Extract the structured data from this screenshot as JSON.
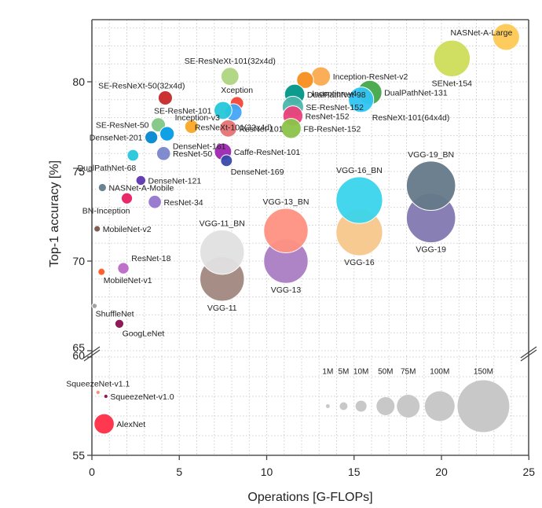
{
  "chart_data": {
    "type": "scatter",
    "title": "",
    "xlabel": "Operations [G-FLOPs]",
    "ylabel": "Top-1 accuracy [%]",
    "xlim": [
      0,
      25
    ],
    "ylim_upper_panel": [
      65,
      83.5
    ],
    "ylim_lower_panel": [
      55,
      60
    ],
    "axis_break": "between 60 and 65",
    "x_ticks": [
      "0",
      "5",
      "10",
      "15",
      "20",
      "25"
    ],
    "y_ticks_upper": [
      "65",
      "70",
      "75",
      "80"
    ],
    "y_ticks_lower": [
      "55",
      "60"
    ],
    "grid": true,
    "bubble_size": "number of parameters",
    "legend": {
      "placement": "bottom-right",
      "entries": [
        {
          "label": "1M",
          "params": 1,
          "x": 13.5
        },
        {
          "label": "5M",
          "params": 5,
          "x": 14.4
        },
        {
          "label": "10M",
          "params": 10,
          "x": 15.4
        },
        {
          "label": "50M",
          "params": 50,
          "x": 16.8
        },
        {
          "label": "75M",
          "params": 75,
          "x": 18.1
        },
        {
          "label": "100M",
          "params": 100,
          "x": 19.9
        },
        {
          "label": "150M",
          "params": 150,
          "x": 22.4
        }
      ],
      "y": 57.5,
      "color": "#c8c8c8"
    },
    "points": [
      {
        "name": "NASNet-A-Large",
        "x": 23.7,
        "y": 82.5,
        "params": 89,
        "color": "#fdc954",
        "label_pos": "left-top"
      },
      {
        "name": "SENet-154",
        "x": 20.6,
        "y": 81.3,
        "params": 115,
        "color": "#cddc59",
        "label_pos": "below"
      },
      {
        "name": "DualPathNet-131",
        "x": 15.9,
        "y": 79.4,
        "params": 80,
        "color": "#43a849",
        "label_pos": "right"
      },
      {
        "name": "ResNeXt-101(64x4d)",
        "x": 15.4,
        "y": 79.0,
        "params": 84,
        "color": "#32c5f4",
        "label_pos": "right-below"
      },
      {
        "name": "Inception-ResNet-v2",
        "x": 13.1,
        "y": 80.3,
        "params": 56,
        "color": "#fbaa4f",
        "label_pos": "right"
      },
      {
        "name": "Inception-v4",
        "x": 12.2,
        "y": 80.1,
        "params": 43,
        "color": "#f58d1e",
        "label_pos": "right-below"
      },
      {
        "name": "DualPathNet-98",
        "x": 11.6,
        "y": 79.3,
        "params": 61,
        "color": "#009688",
        "label_pos": "right"
      },
      {
        "name": "SE-ResNet-152",
        "x": 11.5,
        "y": 78.6,
        "params": 67,
        "color": "#4db6ac",
        "label_pos": "right"
      },
      {
        "name": "ResNet-152",
        "x": 11.5,
        "y": 78.1,
        "params": 60,
        "color": "#ec407a",
        "label_pos": "right"
      },
      {
        "name": "FB-ResNet-152",
        "x": 11.4,
        "y": 77.4,
        "params": 60,
        "color": "#8bc34a",
        "label_pos": "right"
      },
      {
        "name": "SE-ResNeXt-101(32x4d)",
        "x": 7.9,
        "y": 80.3,
        "params": 49,
        "color": "#aed581",
        "label_pos": "above"
      },
      {
        "name": "SE-ResNeXt-50(32x4d)",
        "x": 4.2,
        "y": 79.1,
        "params": 28,
        "color": "#c62828",
        "label_pos": "left-top"
      },
      {
        "name": "Xception",
        "x": 8.3,
        "y": 78.8,
        "params": 23,
        "color": "#f44336",
        "label_pos": "above"
      },
      {
        "name": "ResNeXt-101(32x4d)",
        "x": 8.1,
        "y": 78.3,
        "params": 44,
        "color": "#42a5f5",
        "label_pos": "below"
      },
      {
        "name": "SE-ResNet-101",
        "x": 7.5,
        "y": 78.4,
        "params": 49,
        "color": "#26c6da",
        "label_pos": "left"
      },
      {
        "name": "Inception-v3",
        "x": 5.7,
        "y": 77.5,
        "params": 24,
        "color": "#f9a825",
        "label_pos": "left-top"
      },
      {
        "name": "SE-ResNet-50",
        "x": 3.8,
        "y": 77.6,
        "params": 28,
        "color": "#81c784",
        "label_pos": "left"
      },
      {
        "name": "DenseNet-161",
        "x": 4.3,
        "y": 77.1,
        "params": 29,
        "color": "#039be5",
        "label_pos": "right-below"
      },
      {
        "name": "DenseNet-201",
        "x": 3.4,
        "y": 76.9,
        "params": 20,
        "color": "#0288d1",
        "label_pos": "left"
      },
      {
        "name": "ResNet-101",
        "x": 7.8,
        "y": 77.4,
        "params": 45,
        "color": "#e57373",
        "label_pos": "right"
      },
      {
        "name": "Caffe-ResNet-101",
        "x": 7.5,
        "y": 76.1,
        "params": 45,
        "color": "#9c27b0",
        "label_pos": "right"
      },
      {
        "name": "DenseNet-169",
        "x": 7.7,
        "y": 75.6,
        "params": 14,
        "color": "#3949ab",
        "label_pos": "right-below"
      },
      {
        "name": "DualPathNet-68",
        "x": 2.35,
        "y": 75.9,
        "params": 13,
        "color": "#26c6da",
        "label_pos": "left-below"
      },
      {
        "name": "ResNet-50",
        "x": 4.1,
        "y": 76.0,
        "params": 26,
        "color": "#7986cb",
        "label_pos": "right"
      },
      {
        "name": "DenseNet-121",
        "x": 2.8,
        "y": 74.5,
        "params": 8,
        "color": "#5e35b1",
        "label_pos": "right"
      },
      {
        "name": "NASNet-A-Mobile",
        "x": 0.6,
        "y": 74.1,
        "params": 5.3,
        "color": "#607d8b",
        "label_pos": "right"
      },
      {
        "name": "BN-Inception",
        "x": 2.0,
        "y": 73.5,
        "params": 11,
        "color": "#e91e63",
        "label_pos": "left-below"
      },
      {
        "name": "ResNet-34",
        "x": 3.6,
        "y": 73.3,
        "params": 22,
        "color": "#9575cd",
        "label_pos": "right"
      },
      {
        "name": "MobileNet-v2",
        "x": 0.3,
        "y": 71.8,
        "params": 3.5,
        "color": "#795548",
        "label_pos": "right"
      },
      {
        "name": "ResNet-18",
        "x": 1.8,
        "y": 69.6,
        "params": 12,
        "color": "#ba68c8",
        "label_pos": "right-top"
      },
      {
        "name": "MobileNet-v1",
        "x": 0.55,
        "y": 69.4,
        "params": 4.2,
        "color": "#ff5722",
        "label_pos": "right-below"
      },
      {
        "name": "ShuffleNet",
        "x": 0.15,
        "y": 67.5,
        "params": 2.3,
        "color": "#9e9e9e",
        "label_pos": "right-below"
      },
      {
        "name": "GoogLeNet",
        "x": 1.57,
        "y": 66.5,
        "params": 6.6,
        "color": "#880e4f",
        "label_pos": "right-below"
      },
      {
        "name": "VGG-11",
        "x": 7.45,
        "y": 69.0,
        "params": 133,
        "color": "#a1887f",
        "label_pos": "below"
      },
      {
        "name": "VGG-11_BN",
        "x": 7.45,
        "y": 70.5,
        "params": 133,
        "color": "#e0e0e0",
        "label_pos": "above"
      },
      {
        "name": "VGG-13",
        "x": 11.1,
        "y": 70.0,
        "params": 133,
        "color": "#ab7dc4",
        "label_pos": "below"
      },
      {
        "name": "VGG-13_BN",
        "x": 11.1,
        "y": 71.7,
        "params": 133,
        "color": "#ff9182",
        "label_pos": "above"
      },
      {
        "name": "VGG-16",
        "x": 15.3,
        "y": 71.6,
        "params": 138,
        "color": "#f5c78a",
        "label_pos": "below"
      },
      {
        "name": "VGG-16_BN",
        "x": 15.3,
        "y": 73.4,
        "params": 138,
        "color": "#3ad4eb",
        "label_pos": "above"
      },
      {
        "name": "VGG-19",
        "x": 19.4,
        "y": 72.4,
        "params": 144,
        "color": "#8279b1",
        "label_pos": "below"
      },
      {
        "name": "VGG-19_BN",
        "x": 19.4,
        "y": 74.2,
        "params": 144,
        "color": "#65798a",
        "label_pos": "above"
      },
      {
        "name": "SqueezeNet-v1.1",
        "x": 0.35,
        "y": 58.2,
        "params": 1.2,
        "color": "#ff8a65",
        "label_pos": "above"
      },
      {
        "name": "SqueezeNet-v1.0",
        "x": 0.8,
        "y": 58.0,
        "params": 1.2,
        "color": "#880e4f",
        "label_pos": "right"
      },
      {
        "name": "AlexNet",
        "x": 0.7,
        "y": 56.6,
        "params": 61,
        "color": "#ff2d46",
        "label_pos": "right"
      }
    ]
  }
}
